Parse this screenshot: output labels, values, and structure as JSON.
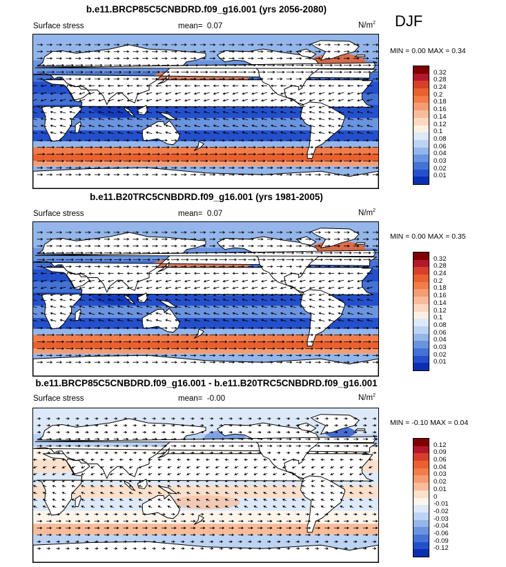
{
  "season": "DJF",
  "panels": [
    {
      "title": "b.e11.BRCP85C5CNBDRD.f09_g16.001 (yrs 2056-2080)",
      "left_label": "Surface stress",
      "mean_label": "mean=",
      "mean_value": "0.07",
      "units": "N/m",
      "units_sup": "2",
      "minmax": "MIN =  0.00 MAX =  0.34"
    },
    {
      "title": "b.e11.B20TRC5CNBDRD.f09_g16.001 (yrs 1981-2005)",
      "left_label": "Surface stress",
      "mean_label": "mean=",
      "mean_value": "0.07",
      "units": "N/m",
      "units_sup": "2",
      "minmax": "MIN =  0.00 MAX =  0.35"
    },
    {
      "title": "b.e11.BRCP85C5CNBDRD.f09_g16.001 - b.e11.B20TRC5CNBDRD.f09_g16.001",
      "left_label": "Surface stress",
      "mean_label": "mean=",
      "mean_value": "-0.00",
      "units": "N/m",
      "units_sup": "2",
      "minmax": "MIN = -0.10 MAX =  0.04"
    }
  ],
  "chart_data": [
    {
      "type": "heatmap",
      "title": "b.e11.BRCP85C5CNBDRD.f09_g16.001 (yrs 2056-2080)",
      "variable": "Surface stress",
      "units": "N/m2",
      "mean": 0.07,
      "min": 0.0,
      "max": 0.34,
      "colorbar_levels": [
        "0.32",
        "0.28",
        "0.24",
        "0.2",
        "0.18",
        "0.16",
        "0.14",
        "0.12",
        "0.1",
        "0.08",
        "0.06",
        "0.04",
        "0.03",
        "0.02",
        "0.01"
      ],
      "colorbar_colors": [
        "#7f0000",
        "#b2182b",
        "#d6402a",
        "#e8612f",
        "#f27c4a",
        "#f59c73",
        "#f8bc9a",
        "#fbd8c0",
        "#fdf0e2",
        "#dde9f8",
        "#bcd3f3",
        "#94b6ea",
        "#6b94df",
        "#4472d6",
        "#2450cc",
        "#0a2fb0"
      ]
    },
    {
      "type": "heatmap",
      "title": "b.e11.B20TRC5CNBDRD.f09_g16.001 (yrs 1981-2005)",
      "variable": "Surface stress",
      "units": "N/m2",
      "mean": 0.07,
      "min": 0.0,
      "max": 0.35,
      "colorbar_levels": [
        "0.32",
        "0.28",
        "0.24",
        "0.2",
        "0.18",
        "0.16",
        "0.14",
        "0.12",
        "0.1",
        "0.08",
        "0.06",
        "0.04",
        "0.03",
        "0.02",
        "0.01"
      ],
      "colorbar_colors": [
        "#7f0000",
        "#b2182b",
        "#d6402a",
        "#e8612f",
        "#f27c4a",
        "#f59c73",
        "#f8bc9a",
        "#fbd8c0",
        "#fdf0e2",
        "#dde9f8",
        "#bcd3f3",
        "#94b6ea",
        "#6b94df",
        "#4472d6",
        "#2450cc",
        "#0a2fb0"
      ]
    },
    {
      "type": "heatmap",
      "title": "b.e11.BRCP85C5CNBDRD.f09_g16.001 - b.e11.B20TRC5CNBDRD.f09_g16.001",
      "variable": "Surface stress",
      "units": "N/m2",
      "mean": -0.0,
      "min": -0.1,
      "max": 0.04,
      "colorbar_levels": [
        "0.12",
        "0.09",
        "0.06",
        "0.04",
        "0.03",
        "0.02",
        "0.01",
        "0",
        "-0.01",
        "-0.02",
        "-0.03",
        "-0.04",
        "-0.06",
        "-0.09",
        "-0.12"
      ],
      "colorbar_colors": [
        "#7f0000",
        "#b2182b",
        "#d6402a",
        "#e8612f",
        "#f27c4a",
        "#f59c73",
        "#f8bc9a",
        "#fbe0cc",
        "#fdf5ec",
        "#dde9f8",
        "#bcd3f3",
        "#94b6ea",
        "#6b94df",
        "#4472d6",
        "#2450cc",
        "#0a2fb0"
      ]
    }
  ]
}
